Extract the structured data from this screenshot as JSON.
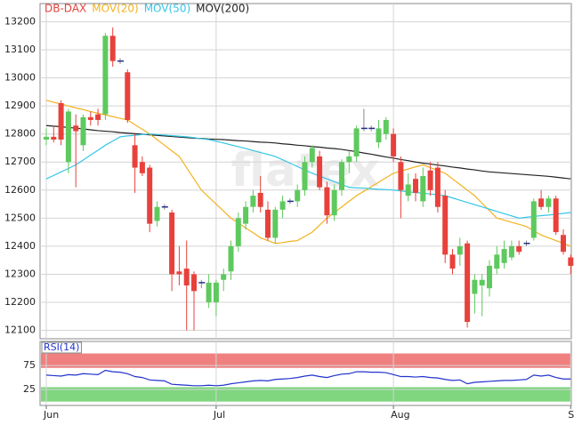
{
  "chart_data": [
    {
      "type": "candlestick",
      "watermark": "flatex",
      "candles": {
        "name": "DB-DAX",
        "color": "#e0433c",
        "up_color": "#5ec95e",
        "down_color": "#e8413c",
        "flat_color": "#1f2d8a",
        "open": [
          12780,
          12790,
          12910,
          12700,
          12830,
          12760,
          12860,
          12870,
          12870,
          13150,
          13060,
          13020,
          12760,
          12700,
          12680,
          12490,
          12540,
          12520,
          12310,
          12320,
          12300,
          12270,
          12200,
          12200,
          12280,
          12310,
          12400,
          12480,
          12540,
          12590,
          12530,
          12430,
          12530,
          12560,
          12560,
          12600,
          12700,
          12720,
          12610,
          12510,
          12600,
          12700,
          12720,
          12820,
          12820,
          12770,
          12800,
          12800,
          12700,
          12580,
          12640,
          12560,
          12670,
          12680,
          12580,
          12370,
          12370,
          12410,
          12230,
          12260,
          12250,
          12320,
          12340,
          12360,
          12400,
          12410,
          12430,
          12570,
          12540,
          12570,
          12440,
          12360
        ],
        "high": [
          12820,
          12830,
          12920,
          12890,
          12870,
          12870,
          12880,
          12890,
          13160,
          13180,
          13070,
          13030,
          12800,
          12720,
          12690,
          12560,
          12550,
          12530,
          12400,
          12420,
          12310,
          12280,
          12300,
          12280,
          12320,
          12420,
          12520,
          12560,
          12600,
          12650,
          12560,
          12540,
          12580,
          12570,
          12620,
          12720,
          12760,
          12740,
          12630,
          12620,
          12710,
          12740,
          12830,
          12890,
          12830,
          12850,
          12860,
          12820,
          12720,
          12660,
          12660,
          12680,
          12700,
          12700,
          12600,
          12390,
          12430,
          12420,
          12300,
          12300,
          12350,
          12400,
          12420,
          12420,
          12420,
          12420,
          12570,
          12600,
          12580,
          12580,
          12460,
          12370
        ],
        "low": [
          12760,
          12770,
          12760,
          12660,
          12610,
          12740,
          12830,
          12830,
          12850,
          13040,
          13050,
          12840,
          12590,
          12650,
          12450,
          12470,
          12530,
          12240,
          12260,
          12100,
          12100,
          12250,
          12180,
          12150,
          12240,
          12280,
          12380,
          12460,
          12520,
          12520,
          12420,
          12410,
          12500,
          12550,
          12540,
          12580,
          12680,
          12600,
          12480,
          12490,
          12580,
          12660,
          12700,
          12810,
          12810,
          12750,
          12780,
          12700,
          12500,
          12560,
          12560,
          12540,
          12580,
          12520,
          12340,
          12300,
          12330,
          12110,
          12160,
          12150,
          12220,
          12300,
          12320,
          12350,
          12370,
          12400,
          12420,
          12530,
          12520,
          12440,
          12370,
          12300
        ],
        "close": [
          12790,
          12780,
          12780,
          12880,
          12810,
          12860,
          12850,
          12850,
          13150,
          13060,
          13060,
          12850,
          12680,
          12660,
          12480,
          12540,
          12540,
          12300,
          12300,
          12260,
          12240,
          12270,
          12270,
          12270,
          12300,
          12400,
          12500,
          12540,
          12580,
          12540,
          12430,
          12530,
          12560,
          12560,
          12600,
          12700,
          12750,
          12610,
          12510,
          12600,
          12700,
          12720,
          12820,
          12820,
          12820,
          12820,
          12850,
          12720,
          12600,
          12620,
          12590,
          12650,
          12600,
          12540,
          12370,
          12320,
          12400,
          12130,
          12280,
          12280,
          12330,
          12370,
          12390,
          12400,
          12380,
          12410,
          12560,
          12540,
          12570,
          12450,
          12380,
          12330
        ]
      },
      "series": [
        {
          "name": "MOV(20)",
          "color": "#f2b21f",
          "values": [
            12920,
            12913,
            12907,
            12900,
            12893,
            12887,
            12880,
            12874,
            12868,
            12862,
            12856,
            12850,
            12833,
            12817,
            12800,
            12780,
            12760,
            12740,
            12720,
            12680,
            12640,
            12600,
            12575,
            12550,
            12525,
            12500,
            12483,
            12465,
            12448,
            12430,
            12420,
            12410,
            12413,
            12417,
            12420,
            12435,
            12450,
            12475,
            12500,
            12520,
            12540,
            12560,
            12580,
            12596,
            12612,
            12628,
            12644,
            12660,
            12668,
            12675,
            12683,
            12690,
            12680,
            12670,
            12660,
            12640,
            12620,
            12600,
            12580,
            12553,
            12527,
            12500,
            12493,
            12485,
            12478,
            12470,
            12455,
            12440,
            12430,
            12420,
            12410,
            12400
          ]
        },
        {
          "name": "MOV(50)",
          "color": "#35c6e6",
          "values": [
            12640,
            12652,
            12665,
            12677,
            12690,
            12707,
            12725,
            12742,
            12760,
            12775,
            12790,
            12793,
            12795,
            12798,
            12800,
            12798,
            12796,
            12794,
            12792,
            12790,
            12787,
            12783,
            12780,
            12774,
            12768,
            12761,
            12755,
            12748,
            12741,
            12734,
            12727,
            12720,
            12708,
            12696,
            12684,
            12672,
            12660,
            12650,
            12640,
            12630,
            12620,
            12610,
            12608,
            12607,
            12605,
            12603,
            12602,
            12600,
            12597,
            12594,
            12591,
            12589,
            12586,
            12583,
            12580,
            12572,
            12564,
            12556,
            12548,
            12540,
            12532,
            12524,
            12516,
            12508,
            12500,
            12503,
            12506,
            12509,
            12511,
            12514,
            12517,
            12520
          ]
        },
        {
          "name": "MOV(200)",
          "color": "#222222",
          "values": [
            12830,
            12828,
            12826,
            12823,
            12821,
            12818,
            12815,
            12812,
            12810,
            12808,
            12805,
            12803,
            12801,
            12799,
            12797,
            12795,
            12793,
            12791,
            12789,
            12787,
            12785,
            12784,
            12782,
            12781,
            12780,
            12778,
            12776,
            12775,
            12773,
            12771,
            12770,
            12768,
            12765,
            12763,
            12760,
            12758,
            12755,
            12753,
            12750,
            12748,
            12745,
            12741,
            12737,
            12732,
            12728,
            12723,
            12718,
            12714,
            12709,
            12705,
            12700,
            12696,
            12693,
            12689,
            12686,
            12682,
            12679,
            12675,
            12672,
            12668,
            12665,
            12663,
            12661,
            12659,
            12657,
            12655,
            12653,
            12651,
            12649,
            12646,
            12643,
            12640
          ]
        }
      ],
      "ylim": [
        12070,
        13265
      ],
      "yticks": [
        12100,
        12200,
        12300,
        12400,
        12500,
        12600,
        12700,
        12800,
        12900,
        13000,
        13100,
        13200
      ],
      "grid": true
    },
    {
      "type": "line",
      "categories": [
        "Jun",
        null,
        null,
        null,
        null,
        null,
        null,
        null,
        null,
        null,
        null,
        null,
        null,
        null,
        null,
        null,
        null,
        null,
        null,
        null,
        null,
        null,
        null,
        "Jul",
        null,
        null,
        null,
        null,
        null,
        null,
        null,
        null,
        null,
        null,
        null,
        null,
        null,
        null,
        null,
        null,
        null,
        null,
        null,
        null,
        null,
        null,
        null,
        "Aug",
        null,
        null,
        null,
        null,
        null,
        null,
        null,
        null,
        null,
        null,
        null,
        null,
        null,
        null,
        null,
        null,
        null,
        null,
        null,
        null,
        null,
        null,
        null,
        "S"
      ],
      "series": [
        {
          "name": "RSI(14)",
          "color": "#2233cc",
          "values": [
            55,
            54,
            53,
            56,
            55,
            58,
            57,
            56,
            65,
            62,
            61,
            58,
            52,
            50,
            45,
            44,
            43,
            36,
            35,
            34,
            33,
            33,
            34,
            33,
            34,
            37,
            39,
            41,
            43,
            44,
            43,
            46,
            47,
            48,
            50,
            53,
            55,
            52,
            50,
            54,
            57,
            58,
            62,
            62,
            61,
            61,
            60,
            56,
            52,
            52,
            51,
            52,
            50,
            49,
            46,
            44,
            45,
            37,
            40,
            41,
            42,
            43,
            44,
            44,
            45,
            46,
            55,
            53,
            55,
            50,
            47,
            47
          ]
        }
      ],
      "zones": [
        {
          "from": 70,
          "to": 100,
          "color": "#f08080"
        },
        {
          "from": 0,
          "to": 30,
          "color": "#7fd67f"
        }
      ],
      "ylim": [
        -8,
        125
      ],
      "yticks": [
        25,
        75
      ],
      "grid": true
    }
  ]
}
